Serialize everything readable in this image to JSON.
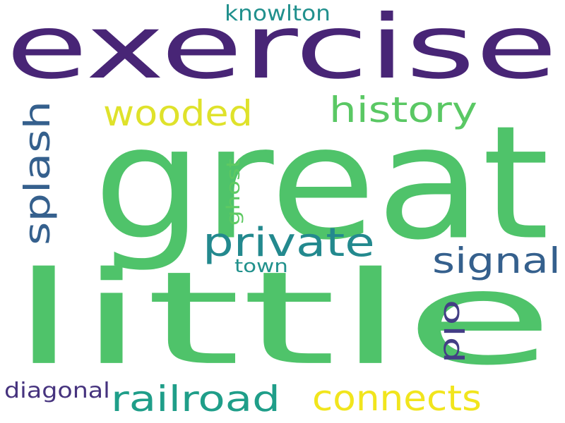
{
  "words": [
    {
      "key": "exercise",
      "text": "exercise",
      "color": "#482576"
    },
    {
      "key": "great",
      "text": "great",
      "color": "#4fc36a"
    },
    {
      "key": "little",
      "text": "little",
      "color": "#4fc36a"
    },
    {
      "key": "wooded",
      "text": "wooded",
      "color": "#dfe22b"
    },
    {
      "key": "history",
      "text": "history",
      "color": "#5ac864"
    },
    {
      "key": "splash",
      "text": "splash",
      "color": "#35608d"
    },
    {
      "key": "private",
      "text": "private",
      "color": "#23898e"
    },
    {
      "key": "signal",
      "text": "signal",
      "color": "#35608d"
    },
    {
      "key": "knowlton",
      "text": "knowlton",
      "color": "#21908d"
    },
    {
      "key": "ghost",
      "text": "ghost",
      "color": "#5ec962"
    },
    {
      "key": "town",
      "text": "town",
      "color": "#21918c"
    },
    {
      "key": "old",
      "text": "old",
      "color": "#433e85"
    },
    {
      "key": "railroad",
      "text": "railroad",
      "color": "#1f9e89"
    },
    {
      "key": "connects",
      "text": "connects",
      "color": "#f1e51d"
    },
    {
      "key": "diagonal",
      "text": "diagonal",
      "color": "#46337e"
    }
  ]
}
